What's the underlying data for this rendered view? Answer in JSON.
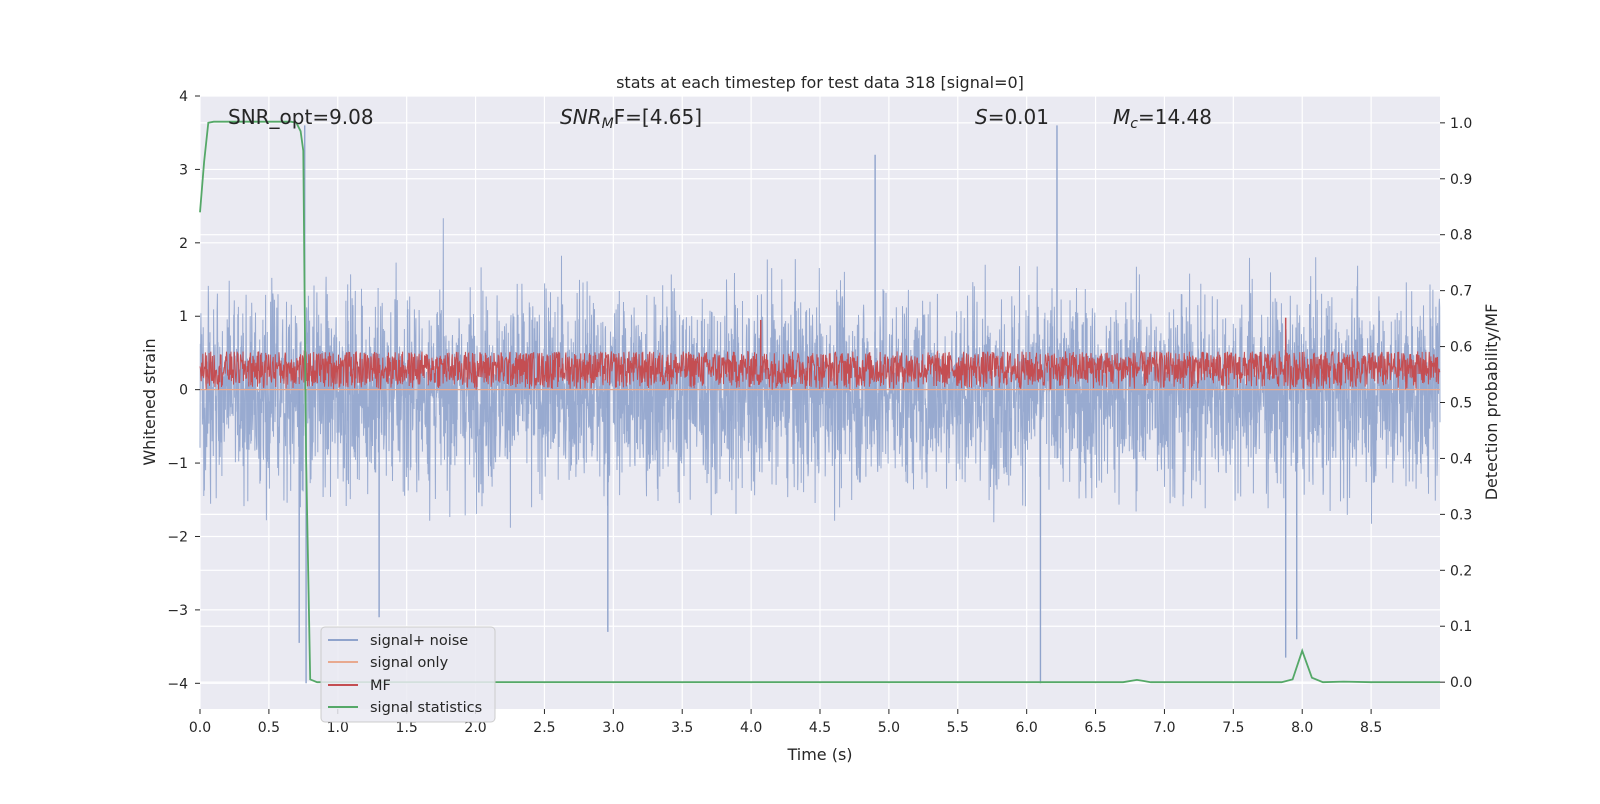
{
  "chart_data": {
    "type": "line",
    "title": "stats at each timestep for test data 318 [signal=0]",
    "xlabel": "Time (s)",
    "ylabel_left": "Whitened strain",
    "ylabel_right": "Detection probability/MF",
    "xlim": [
      0,
      9
    ],
    "ylim_left": [
      -4.35,
      4
    ],
    "ylim_right": [
      -0.048,
      1.048
    ],
    "x_ticks": [
      "0.0",
      "0.5",
      "1.0",
      "1.5",
      "2.0",
      "2.5",
      "3.0",
      "3.5",
      "4.0",
      "4.5",
      "5.0",
      "5.5",
      "6.0",
      "6.5",
      "7.0",
      "7.5",
      "8.0",
      "8.5"
    ],
    "y_ticks_left": [
      "4",
      "3",
      "2",
      "1",
      "0",
      "−1",
      "−2",
      "−3",
      "−4"
    ],
    "y_ticks_right": [
      "1.0",
      "0.9",
      "0.8",
      "0.7",
      "0.6",
      "0.5",
      "0.4",
      "0.3",
      "0.2",
      "0.1",
      "0.0"
    ],
    "annotations": {
      "snr_opt": "SNR_opt=9.08",
      "snr_mf_prefix": "SNR",
      "snr_mf_sub": "M",
      "snr_mf_suffix": "F=[4.65]",
      "s_var": "S",
      "s_value": "=0.01",
      "mc_var": "M",
      "mc_sub": "c",
      "mc_value": "=14.48"
    },
    "grid": true,
    "legend_position": "lower-left",
    "colors": {
      "background": "#eaeaf2",
      "signal_noise": "#8fa3cc",
      "signal_only": "#e8a98f",
      "mf": "#c44e52",
      "signal_statistics": "#55a868"
    },
    "noise_envelope": {
      "typical_range": [
        -1.5,
        1.5
      ],
      "extremes": [
        {
          "t": 0.72,
          "y": -3.45
        },
        {
          "t": 0.76,
          "y": 3.6
        },
        {
          "t": 0.77,
          "y": -4.0
        },
        {
          "t": 1.3,
          "y": -3.1
        },
        {
          "t": 2.96,
          "y": -3.3
        },
        {
          "t": 4.9,
          "y": 3.2
        },
        {
          "t": 6.1,
          "y": -4.0
        },
        {
          "t": 6.22,
          "y": 3.6
        },
        {
          "t": 7.88,
          "y": -3.65
        },
        {
          "t": 7.96,
          "y": -3.4
        }
      ]
    },
    "series": [
      {
        "name": "signal+ noise",
        "axis": "left"
      },
      {
        "name": "signal only",
        "axis": "left",
        "x": [
          0,
          9
        ],
        "y": [
          0,
          0
        ]
      },
      {
        "name": "MF",
        "axis": "left",
        "typical_range": [
          0.0,
          0.55
        ],
        "peaks": [
          {
            "t": 4.07,
            "y": 0.95
          },
          {
            "t": 7.88,
            "y": 0.98
          }
        ]
      },
      {
        "name": "signal statistics",
        "axis": "right",
        "x": [
          0.0,
          0.03,
          0.06,
          0.1,
          0.15,
          0.3,
          0.45,
          0.6,
          0.66,
          0.7,
          0.73,
          0.75,
          0.77,
          0.8,
          0.85,
          1.0,
          2.0,
          3.0,
          4.0,
          5.0,
          6.0,
          6.7,
          6.8,
          6.85,
          6.9,
          7.0,
          7.5,
          7.85,
          7.93,
          8.0,
          8.07,
          8.15,
          8.3,
          8.5,
          9.0
        ],
        "y": [
          0.84,
          0.93,
          1.0,
          1.002,
          1.002,
          1.002,
          1.002,
          1.002,
          1.002,
          1.0,
          0.985,
          0.95,
          0.4,
          0.005,
          0.0,
          0.0,
          0.0,
          0.0,
          0.0,
          0.0,
          0.0,
          0.0,
          0.004,
          0.002,
          0.0,
          0.0,
          0.0,
          0.0,
          0.005,
          0.056,
          0.008,
          0.0,
          0.001,
          0.0,
          0.0
        ]
      }
    ]
  }
}
